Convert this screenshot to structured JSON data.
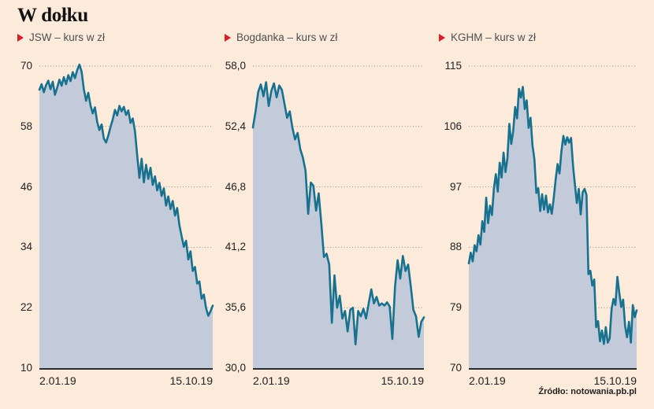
{
  "title": "W dołku",
  "source": "Źródło: notowania.pb.pl",
  "colors": {
    "background": "#fcebdb",
    "area_fill": "#c3cad9",
    "line": "#17718f",
    "grid": "#8f8f8f",
    "axis": "#2b2b2b",
    "accent_red": "#d41f26"
  },
  "chart_data": [
    {
      "type": "area",
      "name": "JSW",
      "legend": "JSW – kurs w zł",
      "ylim": [
        10,
        70
      ],
      "yticks": [
        "70",
        "58",
        "46",
        "34",
        "22",
        "10"
      ],
      "x_start": "2.01.19",
      "x_end": "15.10.19",
      "grid": true,
      "values": [
        65.3,
        66.4,
        64.8,
        66.2,
        67.1,
        65.4,
        66.9,
        64.3,
        65.7,
        67.3,
        66.1,
        67.8,
        66.4,
        68.2,
        67.0,
        68.8,
        67.6,
        69.2,
        70.3,
        68.9,
        65.4,
        63.1,
        64.7,
        62.2,
        60.6,
        61.8,
        58.9,
        57.3,
        58.4,
        55.6,
        54.8,
        56.2,
        57.9,
        59.4,
        61.3,
        60.2,
        62.1,
        61.0,
        61.9,
        60.3,
        61.2,
        58.7,
        59.6,
        57.1,
        52.3,
        47.8,
        51.6,
        46.9,
        50.4,
        47.6,
        49.8,
        46.4,
        48.1,
        45.3,
        46.8,
        44.2,
        45.7,
        42.3,
        44.1,
        41.6,
        43.2,
        40.3,
        41.8,
        38.4,
        36.2,
        34.1,
        35.3,
        31.6,
        33.2,
        29.3,
        30.1,
        26.8,
        27.2,
        23.8,
        24.6,
        21.9,
        20.4,
        21.3,
        22.4
      ]
    },
    {
      "type": "area",
      "name": "Bogdanka",
      "legend": "Bogdanka – kurs w zł",
      "ylim": [
        30.0,
        58.0
      ],
      "yticks": [
        "58,0",
        "52,4",
        "46,8",
        "41,2",
        "35,6",
        "30,0"
      ],
      "x_start": "2.01.19",
      "x_end": "15.10.19",
      "grid": true,
      "values": [
        52.3,
        53.8,
        55.6,
        56.3,
        55.2,
        56.5,
        54.3,
        55.7,
        56.4,
        55.1,
        56.2,
        55.8,
        54.5,
        53.2,
        53.8,
        52.3,
        51.2,
        51.8,
        50.3,
        49.5,
        48.3,
        44.3,
        47.2,
        46.9,
        44.6,
        46.2,
        43.4,
        40.3,
        40.6,
        39.6,
        34.2,
        38.6,
        35.6,
        36.7,
        34.6,
        35.3,
        33.4,
        35.4,
        35.6,
        32.2,
        35.3,
        34.8,
        35.5,
        34.6,
        36.0,
        37.3,
        36.0,
        36.6,
        35.8,
        36.0,
        35.8,
        36.1,
        35.7,
        32.7,
        37.5,
        40.0,
        38.3,
        40.4,
        39.0,
        39.6,
        37.6,
        35.4,
        34.8,
        32.9,
        34.3,
        34.7
      ]
    },
    {
      "type": "area",
      "name": "KGHM",
      "legend": "KGHM – kurs w zł",
      "ylim": [
        70,
        115
      ],
      "yticks": [
        "115",
        "106",
        "97",
        "88",
        "79",
        "70"
      ],
      "x_start": "2.01.19",
      "x_end": "15.10.19",
      "grid": true,
      "values": [
        85.6,
        87.2,
        85.9,
        88.3,
        87.4,
        89.8,
        88.4,
        91.9,
        90.3,
        95.4,
        91.6,
        94.2,
        92.8,
        96.8,
        98.9,
        96.3,
        100.6,
        98.4,
        102.1,
        99.2,
        101.3,
        106.4,
        103.4,
        105.3,
        108.9,
        107.2,
        111.6,
        110.3,
        111.9,
        108.6,
        109.9,
        105.8,
        107.3,
        103.2,
        101.1,
        96.1,
        96.8,
        93.4,
        95.9,
        93.6,
        95.7,
        93.2,
        94.4,
        93.0,
        95.3,
        98.1,
        100.4,
        99.0,
        102.3,
        104.6,
        103.3,
        104.4,
        103.6,
        104.3,
        100.2,
        97.3,
        94.6,
        96.7,
        92.9,
        96.2,
        96.7,
        95.8,
        84.0,
        84.5,
        82.3,
        83.2,
        76.1,
        77.0,
        74.0,
        75.6,
        73.6,
        76.1,
        73.8,
        74.4,
        78.8,
        80.3,
        79.4,
        83.6,
        81.2,
        79.1,
        80.2,
        76.3,
        74.6,
        76.9,
        73.8,
        79.4,
        77.6,
        78.6
      ]
    }
  ]
}
